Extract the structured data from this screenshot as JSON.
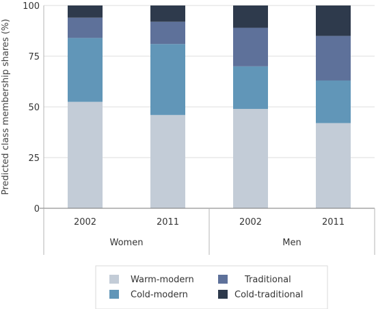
{
  "chart_data": {
    "type": "bar",
    "stacked": true,
    "title": "",
    "ylabel": "Predicted class membership shares (%)",
    "ylim": [
      0,
      100
    ],
    "yticks": [
      0,
      25,
      50,
      75,
      100
    ],
    "grid": true,
    "legend_position": "bottom",
    "groups": [
      {
        "label": "Women",
        "categories": [
          "2002",
          "2011"
        ]
      },
      {
        "label": "Men",
        "categories": [
          "2002",
          "2011"
        ]
      }
    ],
    "categories": [
      "2002",
      "2011",
      "2002",
      "2011"
    ],
    "series": [
      {
        "name": "Warm-modern",
        "color": "#c3ccd7",
        "values": [
          52.5,
          46,
          49,
          42
        ]
      },
      {
        "name": "Cold-modern",
        "color": "#6196b8",
        "values": [
          31.5,
          35,
          21,
          21
        ]
      },
      {
        "name": "Traditional",
        "color": "#5e719a",
        "values": [
          10,
          11,
          19,
          22
        ]
      },
      {
        "name": "Cold-traditional",
        "color": "#2e3a4c",
        "values": [
          6,
          8,
          11,
          15
        ]
      }
    ]
  }
}
